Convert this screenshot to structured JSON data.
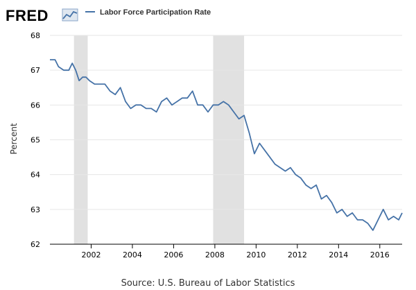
{
  "brand": {
    "logo_text": "FRED"
  },
  "source": "Source: U.S. Bureau of Labor Statistics",
  "colors": {
    "series": "#4572a7",
    "recession": "#e1e1e1",
    "grid": "#e6e6e6",
    "axis": "#000000"
  },
  "chart_data": {
    "type": "line",
    "title": "",
    "xlabel": "",
    "ylabel": "Percent",
    "ylim": [
      62,
      68
    ],
    "y_ticks": [
      62,
      63,
      64,
      65,
      66,
      67,
      68
    ],
    "x_ticks": [
      2002,
      2004,
      2006,
      2008,
      2010,
      2012,
      2014,
      2016
    ],
    "xlim": [
      "2000-01",
      "2017-02"
    ],
    "grid": "horizontal",
    "legend": "top-left",
    "recessions": [
      [
        "2001-03",
        "2001-11"
      ],
      [
        "2007-12",
        "2009-06"
      ]
    ],
    "series": [
      {
        "name": "Labor Force Participation Rate",
        "x": [
          "2000-01",
          "2000-04",
          "2000-06",
          "2000-09",
          "2000-12",
          "2001-02",
          "2001-04",
          "2001-06",
          "2001-08",
          "2001-10",
          "2001-12",
          "2002-03",
          "2002-06",
          "2002-09",
          "2002-12",
          "2003-03",
          "2003-06",
          "2003-09",
          "2003-12",
          "2004-03",
          "2004-06",
          "2004-09",
          "2004-12",
          "2005-03",
          "2005-06",
          "2005-09",
          "2005-12",
          "2006-03",
          "2006-06",
          "2006-09",
          "2006-12",
          "2007-03",
          "2007-06",
          "2007-09",
          "2007-12",
          "2008-03",
          "2008-06",
          "2008-09",
          "2008-12",
          "2009-03",
          "2009-06",
          "2009-09",
          "2009-12",
          "2010-03",
          "2010-06",
          "2010-09",
          "2010-12",
          "2011-03",
          "2011-06",
          "2011-09",
          "2011-12",
          "2012-03",
          "2012-06",
          "2012-09",
          "2012-12",
          "2013-03",
          "2013-06",
          "2013-09",
          "2013-12",
          "2014-03",
          "2014-06",
          "2014-09",
          "2014-12",
          "2015-03",
          "2015-06",
          "2015-09",
          "2015-12",
          "2016-03",
          "2016-06",
          "2016-09",
          "2016-12",
          "2017-02"
        ],
        "values": [
          67.3,
          67.3,
          67.1,
          67.0,
          67.0,
          67.2,
          67.0,
          66.7,
          66.8,
          66.8,
          66.7,
          66.6,
          66.6,
          66.6,
          66.4,
          66.3,
          66.5,
          66.1,
          65.9,
          66.0,
          66.0,
          65.9,
          65.9,
          65.8,
          66.1,
          66.2,
          66.0,
          66.1,
          66.2,
          66.2,
          66.4,
          66.0,
          66.0,
          65.8,
          66.0,
          66.0,
          66.1,
          66.0,
          65.8,
          65.6,
          65.7,
          65.2,
          64.6,
          64.9,
          64.7,
          64.5,
          64.3,
          64.2,
          64.1,
          64.2,
          64.0,
          63.9,
          63.7,
          63.6,
          63.7,
          63.3,
          63.4,
          63.2,
          62.9,
          63.0,
          62.8,
          62.9,
          62.7,
          62.7,
          62.6,
          62.4,
          62.7,
          63.0,
          62.7,
          62.8,
          62.7,
          62.9
        ]
      }
    ]
  }
}
